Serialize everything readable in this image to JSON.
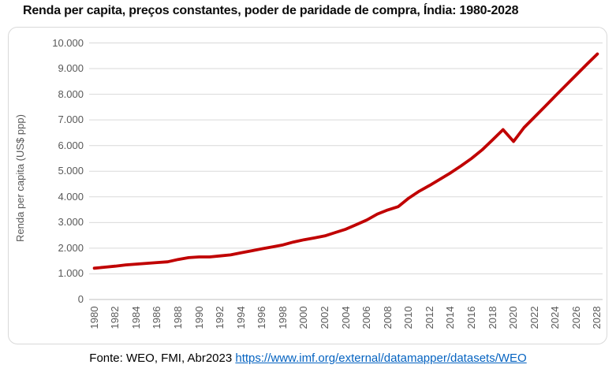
{
  "title": "Renda per capita, preços constantes, poder de paridade de compra, Índia: 1980-2028",
  "footer": {
    "source_text": "Fonte: WEO, FMI, Abr2023 ",
    "link_text": "https://www.imf.org/external/datamapper/datasets/WEO"
  },
  "colors": {
    "series_line": "#c00000",
    "gridline": "#d9d9d9",
    "axis_line": "#bfbfbf",
    "tick_label": "#595959",
    "link": "#0563c1"
  },
  "chart_data": {
    "type": "line",
    "title": "Renda per capita, preços constantes, poder de paridade de compra, Índia: 1980-2028",
    "xlabel": "",
    "ylabel": "Renda per capita (US$ ppp)",
    "ylim": [
      0,
      10000
    ],
    "grid": true,
    "legend": "none",
    "ytick_values": [
      0,
      1000,
      2000,
      3000,
      4000,
      5000,
      6000,
      7000,
      8000,
      9000,
      10000
    ],
    "ytick_labels": [
      "0",
      "1.000",
      "2.000",
      "3.000",
      "4.000",
      "5.000",
      "6.000",
      "7.000",
      "8.000",
      "9.000",
      "10.000"
    ],
    "xtick_labels": [
      "1980",
      "1982",
      "1984",
      "1986",
      "1988",
      "1990",
      "1992",
      "1994",
      "1996",
      "1998",
      "2000",
      "2002",
      "2004",
      "2006",
      "2008",
      "2010",
      "2012",
      "2014",
      "2016",
      "2018",
      "2020",
      "2022",
      "2024",
      "2026",
      "2028"
    ],
    "series": [
      {
        "name": "Índia",
        "color": "#c00000",
        "x": [
          1980,
          1981,
          1982,
          1983,
          1984,
          1985,
          1986,
          1987,
          1988,
          1989,
          1990,
          1991,
          1992,
          1993,
          1994,
          1995,
          1996,
          1997,
          1998,
          1999,
          2000,
          2001,
          2002,
          2003,
          2004,
          2005,
          2006,
          2007,
          2008,
          2009,
          2010,
          2011,
          2012,
          2013,
          2014,
          2015,
          2016,
          2017,
          2018,
          2019,
          2020,
          2021,
          2022,
          2023,
          2024,
          2025,
          2026,
          2027,
          2028
        ],
        "values": [
          1220,
          1260,
          1300,
          1350,
          1380,
          1410,
          1440,
          1470,
          1560,
          1630,
          1660,
          1660,
          1700,
          1740,
          1820,
          1900,
          1980,
          2050,
          2130,
          2240,
          2330,
          2400,
          2480,
          2610,
          2740,
          2920,
          3100,
          3330,
          3490,
          3620,
          3950,
          4220,
          4450,
          4690,
          4940,
          5210,
          5500,
          5830,
          6220,
          6620,
          6160,
          6700,
          7110,
          7520,
          7940,
          8350,
          8760,
          9170,
          9570
        ]
      }
    ]
  }
}
